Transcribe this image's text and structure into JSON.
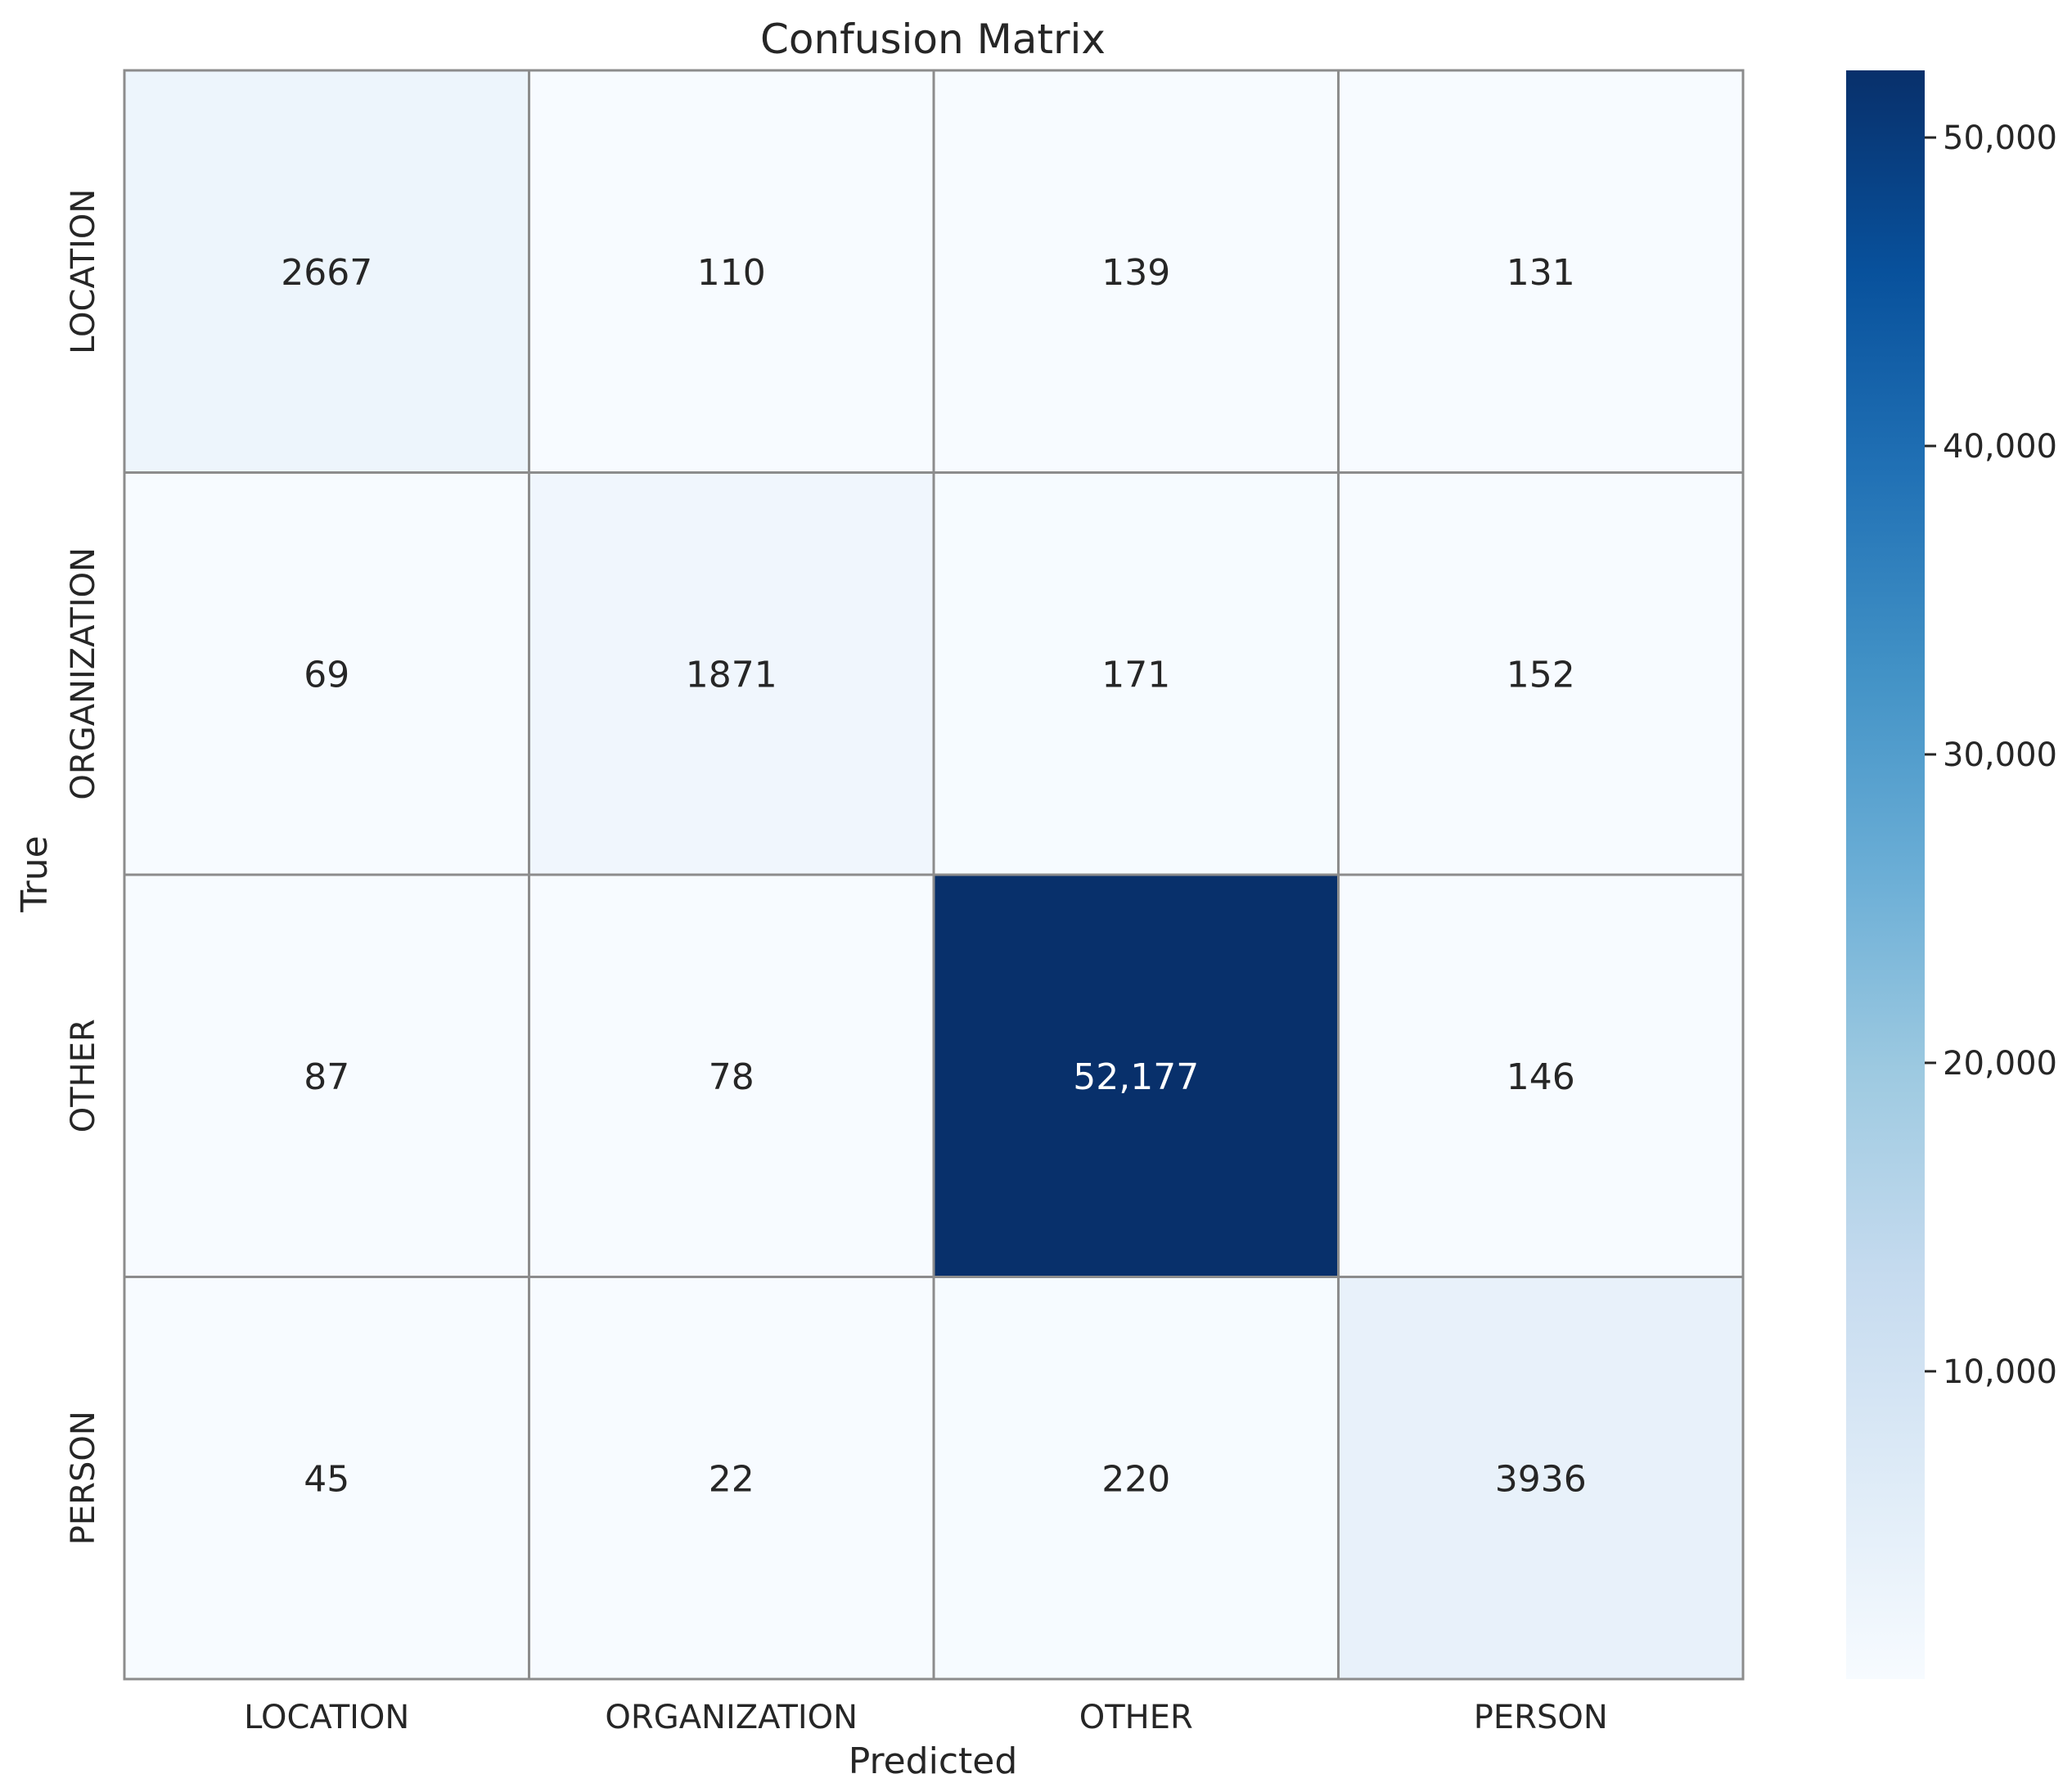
{
  "chart_data": {
    "type": "heatmap",
    "title": "Confusion Matrix",
    "xlabel": "Predicted",
    "ylabel": "True",
    "x_categories": [
      "LOCATION",
      "ORGANIZATION",
      "OTHER",
      "PERSON"
    ],
    "y_categories": [
      "LOCATION",
      "ORGANIZATION",
      "OTHER",
      "PERSON"
    ],
    "values": [
      [
        2667,
        110,
        139,
        131
      ],
      [
        69,
        1871,
        171,
        152
      ],
      [
        87,
        78,
        52177,
        146
      ],
      [
        45,
        22,
        220,
        3936
      ]
    ],
    "value_labels": [
      [
        "2667",
        "110",
        "139",
        "131"
      ],
      [
        "69",
        "1871",
        "171",
        "152"
      ],
      [
        "87",
        "78",
        "52,177",
        "146"
      ],
      [
        "45",
        "22",
        "220",
        "3936"
      ]
    ],
    "colormap": "Blues",
    "colormap_stops": [
      "#f7fbff",
      "#deebf7",
      "#c6dbef",
      "#9ecae1",
      "#6baed6",
      "#4292c6",
      "#2171b5",
      "#08519c",
      "#08306b"
    ],
    "colorbar": {
      "range": [
        22,
        52177
      ],
      "ticks": [
        10000,
        20000,
        30000,
        40000,
        50000
      ],
      "tick_labels": [
        "10,000",
        "20,000",
        "30,000",
        "40,000",
        "50,000"
      ]
    }
  }
}
